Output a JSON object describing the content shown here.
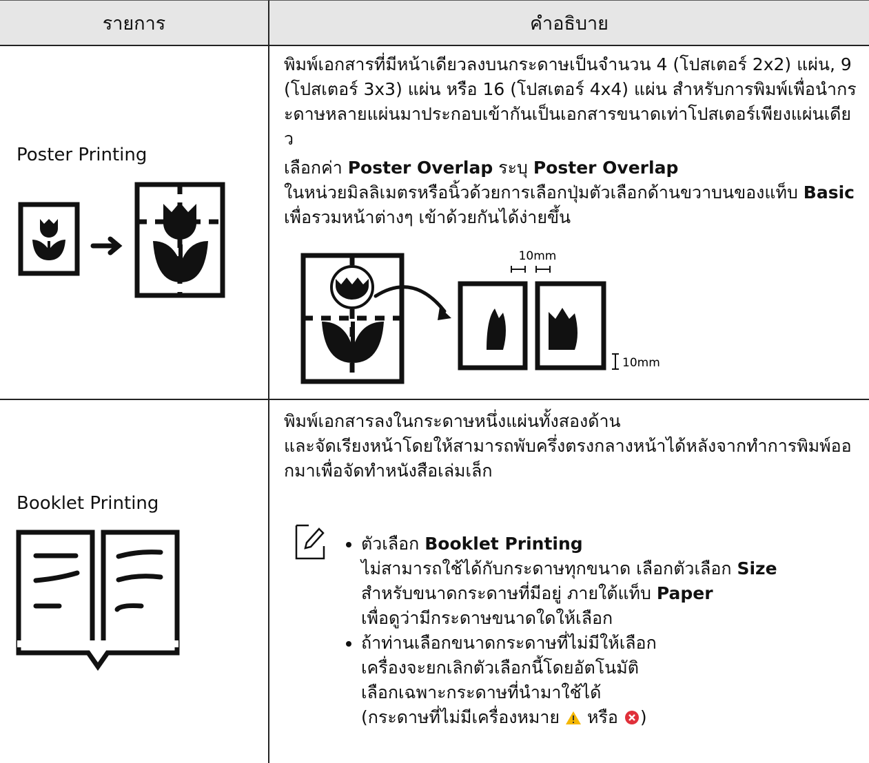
{
  "table": {
    "headers": [
      "รายการ",
      "คำอธิบาย"
    ],
    "rows": [
      {
        "item": "Poster Printing",
        "paragraphs": [
          [
            [
              "พิมพ์เอกสารที่มีหน้าเดียวลงบนกระดาษเป็นจำนวน 4 (โปสเตอร์ 2x2) แผ่น, 9 (โปสเตอร์ 3x3) แผ่น หรือ 16 (โปสเตอร์ 4x4) แผ่น สำหรับการพิมพ์เพื่อนำกระดาษหลายแผ่นมาประกอบเข้ากันเป็นเอกสารขนาดเท่าโปสเตอร์เพียงแผ่นเดียว"
            ]
          ],
          [
            [
              "เลือกค่า ",
              {
                "text": "Poster Overlap",
                "bold": true
              },
              " ระบุ ",
              {
                "text": "Poster Overlap",
                "bold": true
              }
            ],
            [
              "ในหน่วยมิลลิเมตรหรือนิ้วด้วยการเลือกปุ่มตัวเลือกด้านขวาบนของแท็บ ",
              {
                "text": "Basic",
                "bold": true
              },
              " เพื่อรวมหน้าต่างๆ เข้าด้วยกันได้ง่ายขึ้น"
            ]
          ]
        ],
        "figure_labels": [
          "10mm",
          "10mm"
        ]
      },
      {
        "item": "Booklet Printing",
        "paragraphs": [
          [
            [
              "พิมพ์เอกสารลงในกระดาษหนึ่งแผ่นทั้งสองด้าน"
            ],
            [
              "และจัดเรียงหน้าโดยให้สามารถพับครึ่งตรงกลางหน้าได้หลังจากทำการพิมพ์ออกมาเพื่อจัดทำหนังสือเล่มเล็ก"
            ]
          ]
        ],
        "note": [
          [
            [
              "ตัวเลือก ",
              {
                "text": "Booklet Printing",
                "bold": true
              }
            ],
            [
              "ไม่สามารถใช้ได้กับกระดาษทุกขนาด เลือกตัวเลือก ",
              {
                "text": "Size",
                "bold": true
              }
            ],
            [
              "สำหรับขนาดกระดาษที่มีอยู่ ภายใต้แท็บ ",
              {
                "text": "Paper",
                "bold": true
              }
            ],
            [
              "เพื่อดูว่ามีกระดาษขนาดใดให้เลือก"
            ]
          ],
          [
            [
              "ถ้าท่านเลือกขนาดกระดาษที่ไม่มีให้เลือก"
            ],
            [
              "เครื่องจะยกเลิกตัวเลือกนี้โดยอัตโนมัติ"
            ],
            [
              "เลือกเฉพาะกระดาษที่นำมาใช้ได้"
            ],
            [
              "(กระดาษที่ไม่มีเครื่องหมาย ",
              {
                "icon": "warning"
              },
              " หรือ ",
              {
                "icon": "error"
              },
              ")"
            ]
          ]
        ]
      }
    ]
  }
}
